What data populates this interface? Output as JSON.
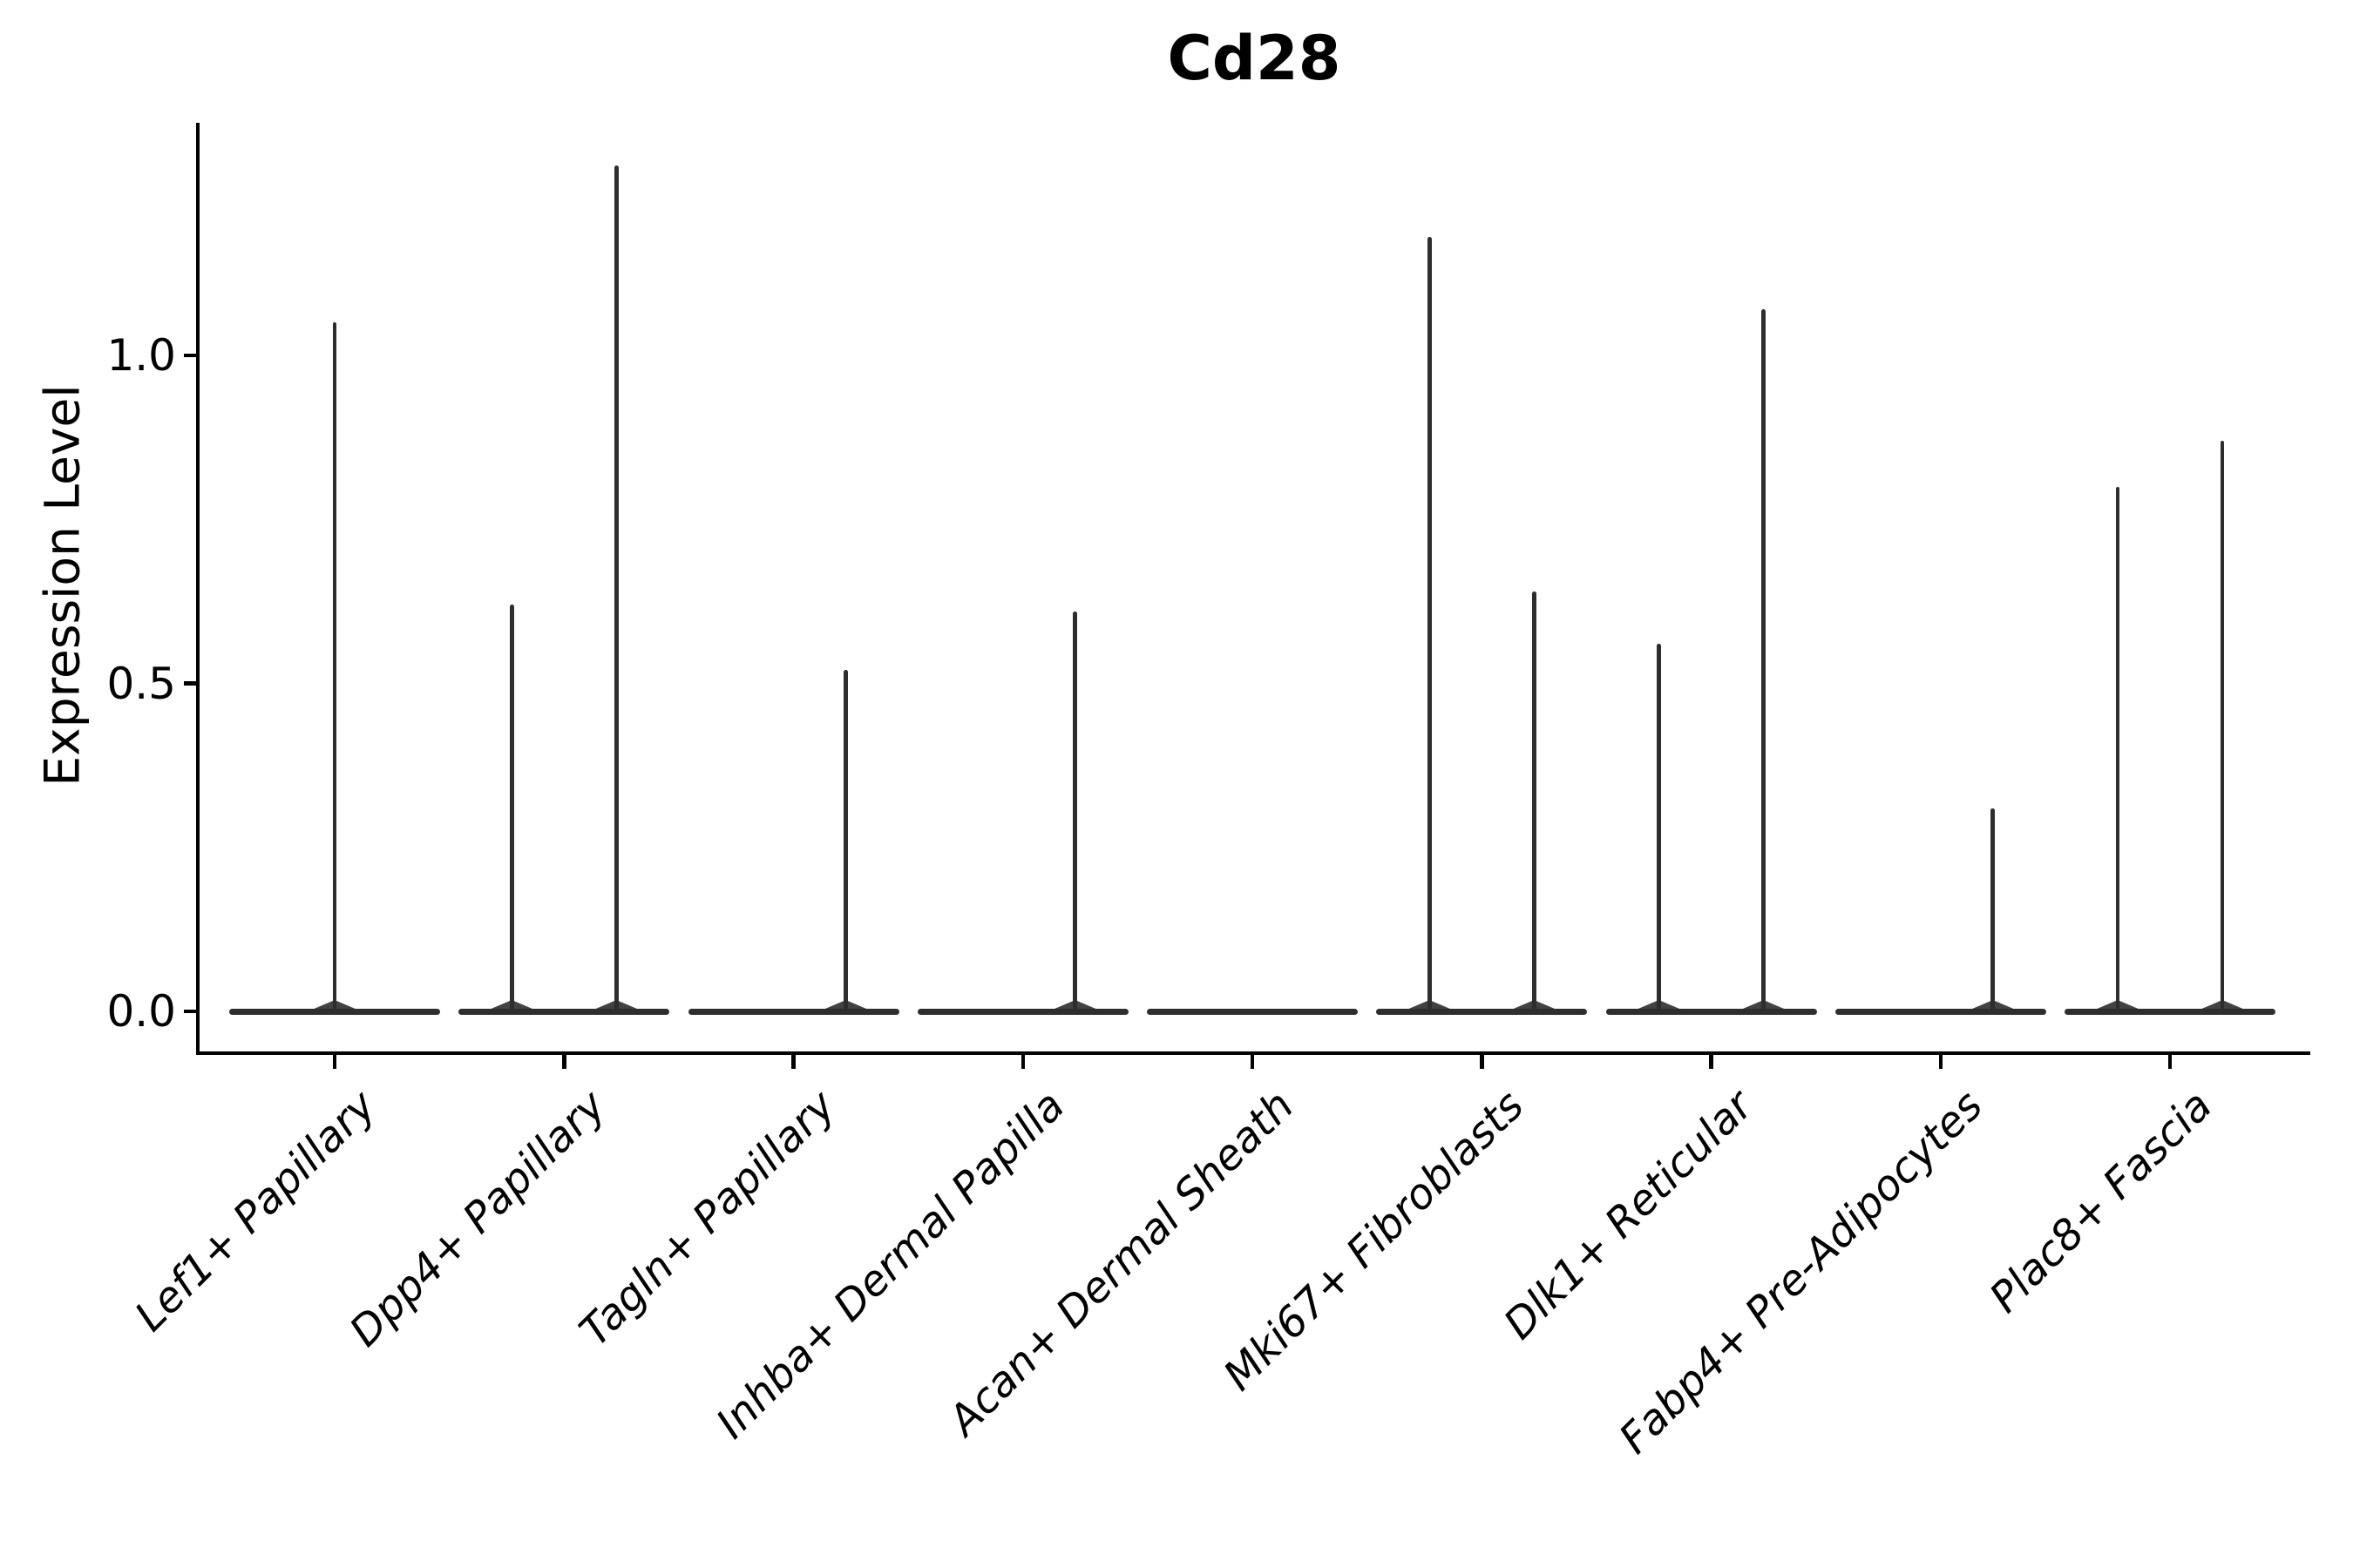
{
  "colors": {
    "background": "#ffffff",
    "axis": "#000000",
    "text": "#000000",
    "violin": "#2e2e2e"
  },
  "chart_data": {
    "type": "violin",
    "title": "Cd28",
    "xlabel": "",
    "ylabel": "Expression Level",
    "ylim": [
      -0.064,
      1.354
    ],
    "grid": false,
    "legend": false,
    "yticks": [
      0.0,
      0.5,
      1.0
    ],
    "ytick_labels": [
      "0.0",
      "0.5",
      "1.0"
    ],
    "categories": [
      "Lef1+ Papillary",
      "Dpp4+ Papillary",
      "Tagln+ Papillary",
      "Inhba+ Dermal Papilla",
      "Acan+ Dermal Sheath",
      "Mki67+ Fibroblasts",
      "Dlk1+ Reticular",
      "Fabp4+ Pre-Adipocytes",
      "Plac8+ Fascia"
    ],
    "violin_base_halfwidth": 0.46,
    "violins": [
      {
        "category": "Lef1+ Papillary",
        "spikes": [
          {
            "pos": 0.0,
            "max": 1.05
          }
        ]
      },
      {
        "category": "Dpp4+ Papillary",
        "spikes": [
          {
            "pos": -0.228,
            "max": 0.62
          },
          {
            "pos": 0.228,
            "max": 1.29
          }
        ]
      },
      {
        "category": "Tagln+ Papillary",
        "spikes": [
          {
            "pos": 0.228,
            "max": 0.52
          }
        ]
      },
      {
        "category": "Inhba+ Dermal Papilla",
        "spikes": [
          {
            "pos": 0.228,
            "max": 0.61
          }
        ]
      },
      {
        "category": "Acan+ Dermal Sheath",
        "spikes": []
      },
      {
        "category": "Mki67+ Fibroblasts",
        "spikes": [
          {
            "pos": -0.228,
            "max": 1.18
          },
          {
            "pos": 0.228,
            "max": 0.64
          }
        ]
      },
      {
        "category": "Dlk1+ Reticular",
        "spikes": [
          {
            "pos": -0.228,
            "max": 0.56
          },
          {
            "pos": 0.228,
            "max": 1.07
          }
        ]
      },
      {
        "category": "Fabp4+ Pre-Adipocytes",
        "spikes": [
          {
            "pos": 0.228,
            "max": 0.31
          }
        ]
      },
      {
        "category": "Plac8+ Fascia",
        "spikes": [
          {
            "pos": -0.228,
            "max": 0.8
          },
          {
            "pos": 0.228,
            "max": 0.87
          }
        ]
      }
    ]
  }
}
